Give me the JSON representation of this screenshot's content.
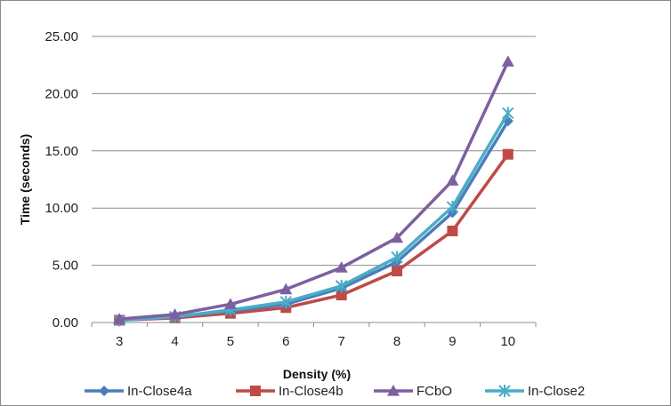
{
  "chart_data": {
    "type": "line",
    "title": "",
    "xlabel": "Density (%)",
    "ylabel": "Time (seconds)",
    "categories": [
      "3",
      "4",
      "5",
      "6",
      "7",
      "8",
      "9",
      "10"
    ],
    "ylim": [
      0,
      25
    ],
    "yticks": [
      "0.00",
      "5.00",
      "10.00",
      "15.00",
      "20.00",
      "25.00"
    ],
    "grid": "horizontal",
    "legend_position": "bottom",
    "series": [
      {
        "name": "In-Close4a",
        "color": "#4a7ebb",
        "marker": "diamond",
        "values": [
          0.2,
          0.5,
          1.0,
          1.6,
          3.0,
          5.3,
          9.6,
          17.6
        ]
      },
      {
        "name": "In-Close4b",
        "color": "#be4b48",
        "marker": "square",
        "values": [
          0.2,
          0.4,
          0.8,
          1.3,
          2.4,
          4.5,
          8.0,
          14.7
        ]
      },
      {
        "name": "FCbO",
        "color": "#7d60a0",
        "marker": "triangle",
        "values": [
          0.3,
          0.7,
          1.6,
          2.9,
          4.8,
          7.4,
          12.4,
          22.8
        ]
      },
      {
        "name": "In-Close2",
        "color": "#4bacc6",
        "marker": "star",
        "values": [
          0.2,
          0.5,
          1.1,
          1.8,
          3.2,
          5.7,
          10.1,
          18.3
        ]
      }
    ]
  }
}
